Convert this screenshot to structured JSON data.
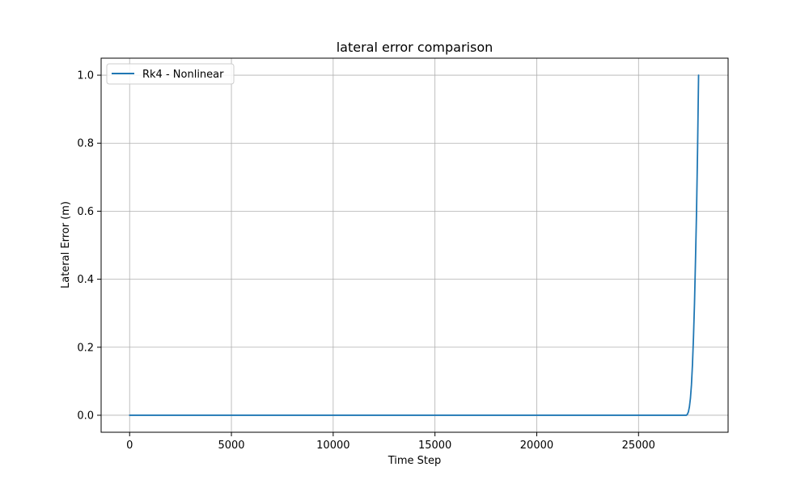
{
  "chart_data": {
    "type": "line",
    "title": "lateral error comparison",
    "xlabel": "Time Step",
    "ylabel": "Lateral Error (m)",
    "xlim": [
      -1400,
      29400
    ],
    "ylim": [
      -0.05,
      1.05
    ],
    "xticks": [
      0,
      5000,
      10000,
      15000,
      20000,
      25000
    ],
    "yticks": [
      0.0,
      0.2,
      0.4,
      0.6,
      0.8,
      1.0
    ],
    "xtick_labels": [
      "0",
      "5000",
      "10000",
      "15000",
      "20000",
      "25000"
    ],
    "ytick_labels": [
      "0.0",
      "0.2",
      "0.4",
      "0.6",
      "0.8",
      "1.0"
    ],
    "grid": true,
    "legend_position": "upper left",
    "series": [
      {
        "name": "Rk4 - Nonlinear",
        "color": "#1f77b4",
        "x": [
          0,
          5000,
          10000,
          15000,
          20000,
          25000,
          27000,
          27350,
          27400,
          27450,
          27500,
          27550,
          27600,
          27650,
          27700,
          27750,
          27800,
          27850,
          27900,
          27950
        ],
        "y": [
          0.0,
          0.0,
          0.0,
          0.0,
          0.0,
          0.0,
          0.0,
          0.0,
          0.003,
          0.01,
          0.025,
          0.05,
          0.09,
          0.15,
          0.23,
          0.33,
          0.46,
          0.6,
          0.78,
          1.0
        ]
      }
    ]
  }
}
